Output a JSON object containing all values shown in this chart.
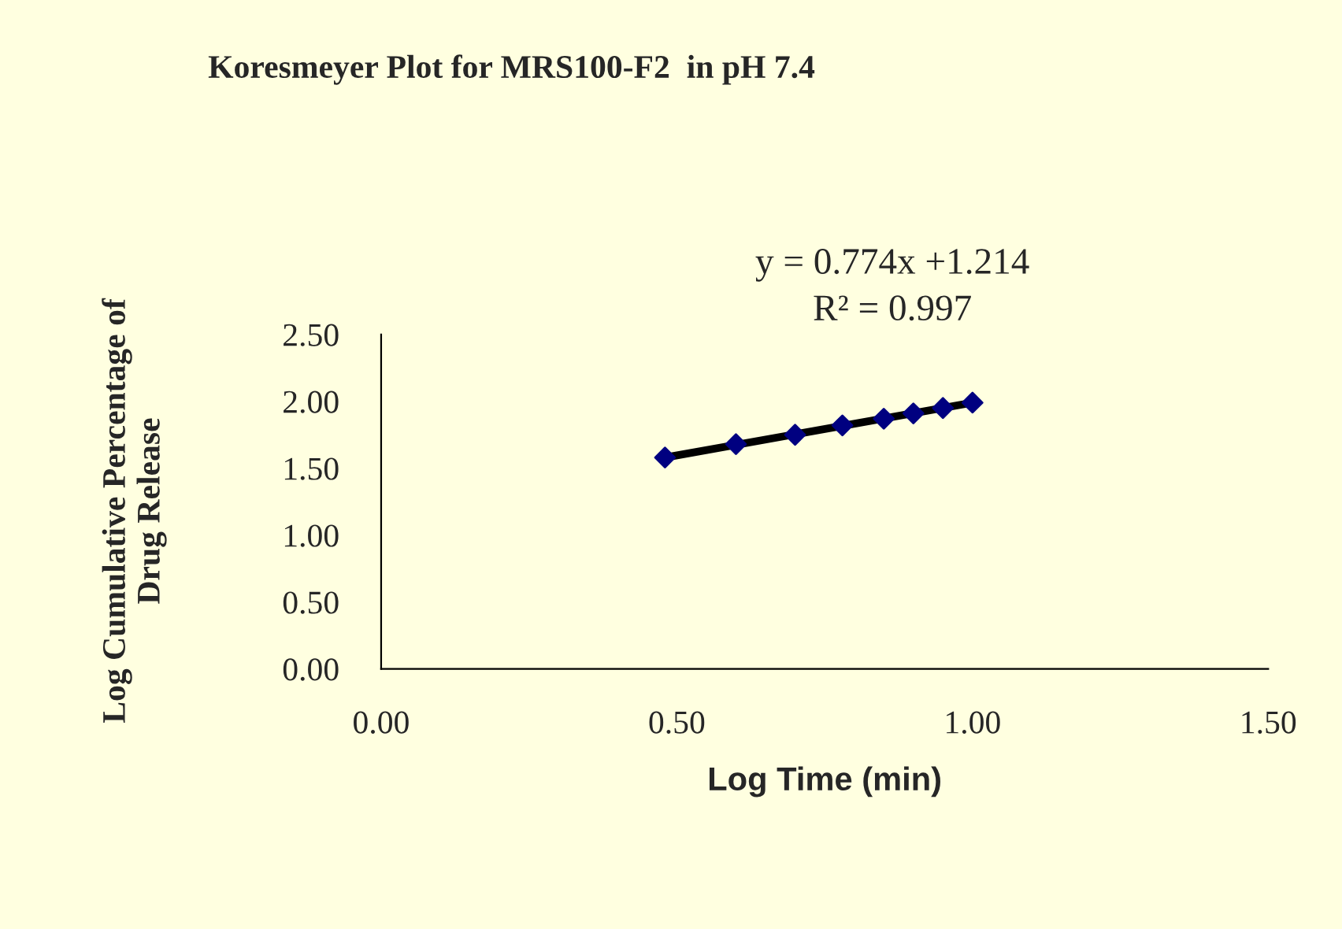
{
  "chart_data": {
    "type": "scatter",
    "title": "Koresmeyer Plot for MRS100-F2  in pH 7.4",
    "xlabel": "Log Time (min)",
    "ylabel": "Log Cumulative Percentage of\nDrug Release",
    "x": [
      0.48,
      0.6,
      0.7,
      0.78,
      0.85,
      0.9,
      0.95,
      1.0
    ],
    "series": [
      {
        "color": "#000080",
        "marker": "diamond",
        "values": [
          1.58,
          1.68,
          1.75,
          1.82,
          1.87,
          1.91,
          1.95,
          1.99
        ]
      },
      {
        "type": "line",
        "color": "#000000",
        "marker": "none",
        "line_style": "solid",
        "x": [
          0.48,
          1.0
        ],
        "values": [
          1.58,
          1.99
        ]
      }
    ],
    "annotations": [
      "y = 0.774x +1.214",
      "R² = 0.997"
    ],
    "xlim": [
      0,
      1.5
    ],
    "xticks": [
      {
        "value": 0,
        "label": "0.00"
      },
      {
        "value": 0.5,
        "label": "0.50"
      },
      {
        "value": 1.0,
        "label": "1.00"
      },
      {
        "value": 1.5,
        "label": "1.50"
      }
    ],
    "ylim": [
      0,
      2.5
    ],
    "yticks": [
      {
        "value": 0,
        "label": "0.00"
      },
      {
        "value": 0.5,
        "label": "0.50"
      },
      {
        "value": 1.0,
        "label": "1.00"
      },
      {
        "value": 1.5,
        "label": "1.50"
      },
      {
        "value": 2.0,
        "label": "2.00"
      },
      {
        "value": 2.5,
        "label": "2.50"
      }
    ],
    "grid": false,
    "legend": false
  }
}
